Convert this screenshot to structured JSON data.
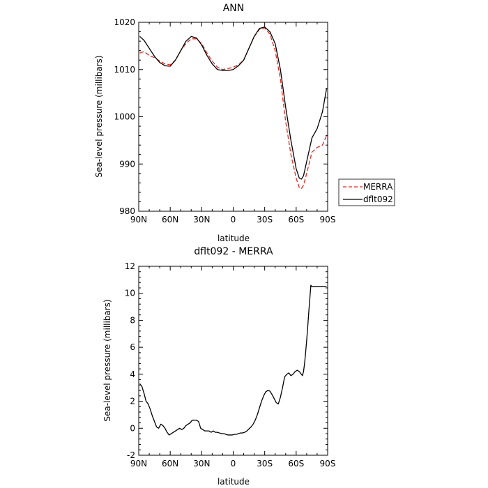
{
  "chart_data": [
    {
      "type": "line",
      "title": "ANN",
      "xlabel": "latitude",
      "ylabel": "Sea-level pressure (millibars)",
      "xlim": [
        90,
        -90
      ],
      "ylim": [
        980,
        1020
      ],
      "x_ticks": [
        90,
        60,
        30,
        0,
        -30,
        -60,
        -90
      ],
      "x_tick_labels": [
        "90N",
        "60N",
        "30N",
        "0",
        "30S",
        "60S",
        "90S"
      ],
      "y_ticks": [
        980,
        990,
        1000,
        1010,
        1020
      ],
      "y_tick_labels": [
        "980",
        "990",
        "1000",
        "1010",
        "1020"
      ],
      "legend_position": "outside-right",
      "series": [
        {
          "name": "MERRA",
          "color": "#e8261f",
          "dash": "dashed",
          "x": [
            89,
            85,
            80,
            75,
            70,
            65,
            60,
            55,
            50,
            45,
            40,
            35,
            30,
            25,
            20,
            15,
            10,
            5,
            0,
            -5,
            -10,
            -15,
            -20,
            -25,
            -30,
            -35,
            -40,
            -45,
            -50,
            -55,
            -60,
            -63,
            -65,
            -67,
            -70,
            -75,
            -80,
            -85,
            -89
          ],
          "y": [
            1013.5,
            1013.8,
            1013.0,
            1012.5,
            1011.8,
            1011.2,
            1011.0,
            1012.0,
            1014.0,
            1015.5,
            1016.5,
            1016.5,
            1015.5,
            1013.5,
            1011.8,
            1010.5,
            1010.0,
            1010.2,
            1010.5,
            1011.0,
            1012.0,
            1014.5,
            1017.0,
            1018.5,
            1018.8,
            1017.5,
            1014.0,
            1008.0,
            999.0,
            992.0,
            987.0,
            985.0,
            984.8,
            985.5,
            988.0,
            992.5,
            993.5,
            994.0,
            996.0
          ]
        },
        {
          "name": "dflt092",
          "color": "#000000",
          "dash": "solid",
          "x": [
            89,
            85,
            80,
            75,
            70,
            65,
            60,
            55,
            50,
            45,
            40,
            35,
            30,
            25,
            20,
            15,
            10,
            5,
            0,
            -5,
            -10,
            -15,
            -20,
            -25,
            -30,
            -35,
            -40,
            -45,
            -50,
            -55,
            -60,
            -63,
            -65,
            -67,
            -70,
            -75,
            -80,
            -85,
            -89
          ],
          "y": [
            1017.0,
            1016.2,
            1014.5,
            1012.8,
            1011.5,
            1010.8,
            1010.7,
            1012.0,
            1014.0,
            1016.0,
            1017.0,
            1016.7,
            1015.2,
            1013.0,
            1011.2,
            1010.0,
            1009.8,
            1009.8,
            1010.0,
            1010.8,
            1012.0,
            1014.5,
            1017.0,
            1018.7,
            1019.0,
            1018.0,
            1015.5,
            1010.0,
            1002.0,
            995.0,
            989.0,
            987.0,
            986.8,
            987.5,
            990.5,
            995.5,
            997.5,
            1001.0,
            1006.0
          ]
        }
      ]
    },
    {
      "type": "line",
      "title": "dflt092 - MERRA",
      "xlabel": "latitude",
      "ylabel": "Sea-level pressure (millibars)",
      "xlim": [
        90,
        -90
      ],
      "ylim": [
        -2,
        12
      ],
      "x_ticks": [
        90,
        60,
        30,
        0,
        -30,
        -60,
        -90
      ],
      "x_tick_labels": [
        "90N",
        "60N",
        "30N",
        "0",
        "30S",
        "60S",
        "90S"
      ],
      "y_ticks": [
        -2,
        0,
        2,
        4,
        6,
        8,
        10,
        12
      ],
      "y_tick_labels": [
        "-2",
        "0",
        "2",
        "4",
        "6",
        "8",
        "10",
        "12"
      ],
      "series": [
        {
          "color": "#000000",
          "dash": "solid",
          "x": [
            89,
            87,
            85,
            83,
            81,
            79,
            77,
            75,
            73,
            71,
            69,
            67,
            65,
            63,
            61,
            59,
            57,
            55,
            53,
            51,
            49,
            47,
            45,
            43,
            41,
            39,
            37,
            35,
            33,
            31,
            29,
            27,
            25,
            23,
            21,
            19,
            17,
            15,
            13,
            11,
            9,
            7,
            5,
            3,
            1,
            -1,
            -3,
            -5,
            -7,
            -9,
            -11,
            -13,
            -15,
            -17,
            -19,
            -21,
            -23,
            -25,
            -27,
            -29,
            -31,
            -33,
            -35,
            -37,
            -39,
            -41,
            -43,
            -45,
            -47,
            -49,
            -51,
            -53,
            -55,
            -57,
            -59,
            -61,
            -63,
            -65,
            -66,
            -67,
            -68,
            -69,
            -70,
            -71,
            -72,
            -73,
            -74,
            -75,
            -76,
            -77,
            -78,
            -79,
            -80,
            -81,
            -82,
            -83,
            -84,
            -85,
            -86,
            -87,
            -88,
            -89
          ],
          "y": [
            3.3,
            3.1,
            2.6,
            2.0,
            1.8,
            1.4,
            0.9,
            0.5,
            0.1,
            0.0,
            0.3,
            0.2,
            0.0,
            -0.3,
            -0.5,
            -0.4,
            -0.3,
            -0.2,
            -0.1,
            0.0,
            -0.1,
            0.0,
            0.2,
            0.3,
            0.4,
            0.6,
            0.6,
            0.6,
            0.5,
            0.0,
            -0.1,
            -0.2,
            -0.2,
            -0.2,
            -0.3,
            -0.2,
            -0.3,
            -0.3,
            -0.35,
            -0.4,
            -0.4,
            -0.45,
            -0.5,
            -0.5,
            -0.5,
            -0.45,
            -0.45,
            -0.4,
            -0.35,
            -0.35,
            -0.3,
            -0.2,
            -0.05,
            0.1,
            0.3,
            0.6,
            1.0,
            1.5,
            2.0,
            2.4,
            2.7,
            2.8,
            2.75,
            2.5,
            2.2,
            1.9,
            1.8,
            2.3,
            3.0,
            3.8,
            4.0,
            4.1,
            3.9,
            4.0,
            4.2,
            4.3,
            4.2,
            4.0,
            3.9,
            4.2,
            4.8,
            5.6,
            6.5,
            7.5,
            8.6,
            9.6,
            10.6,
            10.5,
            10.5,
            10.5,
            10.5,
            10.5,
            10.5,
            10.5,
            10.5,
            10.5,
            10.5,
            10.5,
            10.5,
            10.5,
            10.5,
            10.5
          ]
        }
      ]
    }
  ]
}
